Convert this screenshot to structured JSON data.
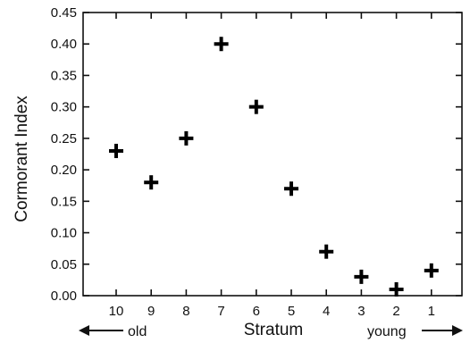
{
  "chart_data": {
    "type": "scatter",
    "xlabel": "Stratum",
    "ylabel": "Cormorant Index",
    "categories": [
      "10",
      "9",
      "8",
      "7",
      "6",
      "5",
      "4",
      "3",
      "2",
      "1"
    ],
    "values": [
      0.23,
      0.18,
      0.25,
      0.4,
      0.3,
      0.17,
      0.07,
      0.03,
      0.01,
      0.04
    ],
    "ylim": [
      0.0,
      0.45
    ],
    "yticks": [
      "0.00",
      "0.05",
      "0.10",
      "0.15",
      "0.20",
      "0.25",
      "0.30",
      "0.35",
      "0.40",
      "0.45"
    ],
    "marker": "plus",
    "grid": false,
    "annotations": {
      "left": "old",
      "right": "young"
    }
  }
}
